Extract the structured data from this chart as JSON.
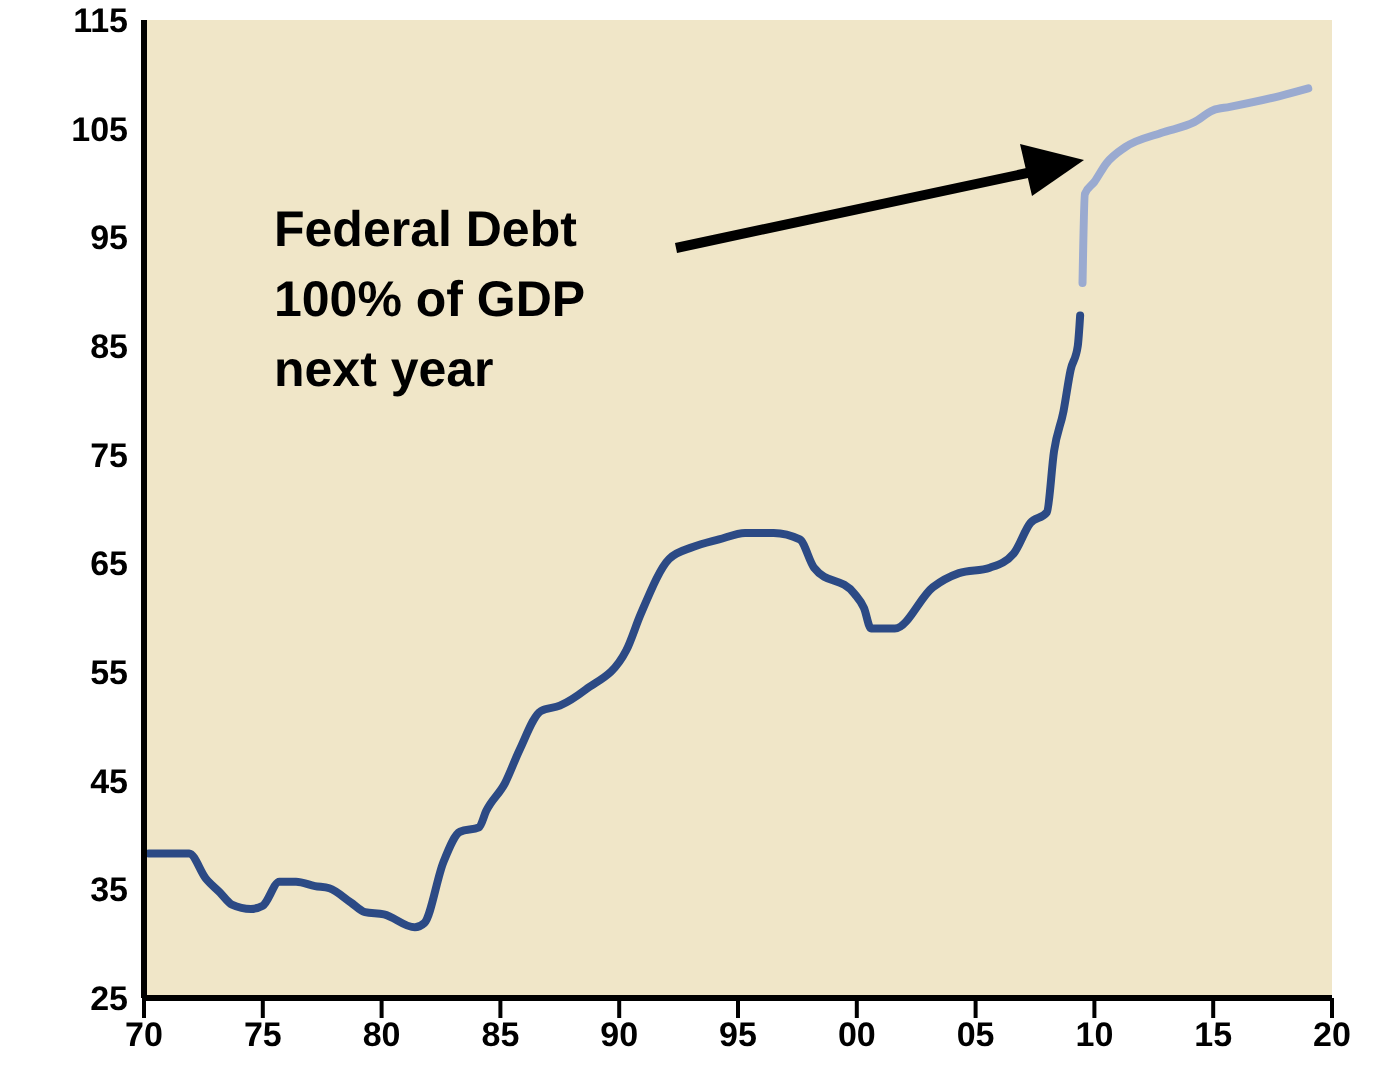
{
  "chart_data": {
    "type": "line",
    "xlim": [
      1970,
      2020
    ],
    "xticks": [
      {
        "value": 1970,
        "label": "70"
      },
      {
        "value": 1975,
        "label": "75"
      },
      {
        "value": 1980,
        "label": "80"
      },
      {
        "value": 1985,
        "label": "85"
      },
      {
        "value": 1990,
        "label": "90"
      },
      {
        "value": 1995,
        "label": "95"
      },
      {
        "value": 2000,
        "label": "00"
      },
      {
        "value": 2005,
        "label": "05"
      },
      {
        "value": 2010,
        "label": "10"
      },
      {
        "value": 2015,
        "label": "15"
      },
      {
        "value": 2020,
        "label": "20"
      }
    ],
    "ylim": [
      25,
      115
    ],
    "yticks": [
      25,
      35,
      45,
      55,
      65,
      75,
      85,
      95,
      105,
      115
    ],
    "grid": false,
    "marker": "none",
    "line_style": "solid",
    "annotations": [
      "Federal Debt\n100% of GDP\nnext year"
    ],
    "series": [
      {
        "color": "#2c4a85",
        "x": [
          1970.2,
          1971.9,
          1972.6,
          1973.2,
          1973.7,
          1974.5,
          1975.0,
          1975.7,
          1976.4,
          1977.2,
          1977.8,
          1978.7,
          1979.3,
          1980.1,
          1981.4,
          1981.8,
          1982.6,
          1983.3,
          1984.1,
          1984.4,
          1985.2,
          1985.8,
          1986.7,
          1987.5,
          1988.6,
          1990.3,
          1990.9,
          1992.1,
          1993.1,
          1994.2,
          1995.3,
          1996.5,
          1997.6,
          1998.2,
          1999.9,
          2000.3,
          2000.6,
          2001.6,
          2003.2,
          2004.3,
          2005.6,
          2006.6,
          2007.3,
          2008.0,
          2008.3,
          2008.7,
          2009.0,
          2009.3,
          2009.4
        ],
        "values": [
          38.3,
          38.3,
          36,
          34.7,
          33.6,
          33.2,
          33.5,
          35.7,
          35.7,
          35.3,
          35.1,
          33.8,
          32.9,
          32.7,
          31.5,
          31.9,
          37.5,
          40.3,
          40.7,
          42.2,
          44.8,
          47.8,
          51.4,
          51.9,
          53.4,
          57.0,
          60.3,
          65.4,
          66.5,
          67.2,
          67.8,
          67.8,
          67.2,
          64.6,
          62.2,
          60.9,
          59.0,
          59.0,
          62.8,
          64.1,
          64.6,
          65.9,
          68.7,
          69.7,
          75.3,
          79.0,
          82.8,
          85.0,
          87.8
        ]
      },
      {
        "color": "#9aaad0",
        "x": [
          2009.5,
          2009.6,
          2010.0,
          2010.5,
          2011.3,
          2012.8,
          2014.2,
          2015.0,
          2015.7,
          2017.8,
          2019.0
        ],
        "values": [
          90.8,
          99.0,
          100.1,
          101.8,
          103.3,
          104.6,
          105.6,
          106.7,
          107.0,
          108.0,
          108.7
        ]
      }
    ]
  }
}
